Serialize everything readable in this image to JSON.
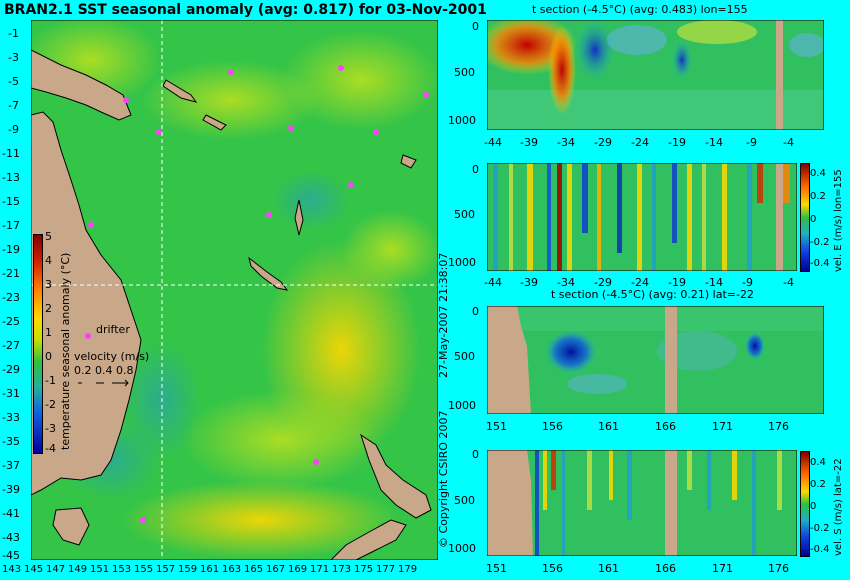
{
  "map": {
    "title": "BRAN2.1 SST seasonal anomaly (avg: 0.817) for 03-Nov-2001",
    "lat_ticks": [
      "-1",
      "-3",
      "-5",
      "-7",
      "-9",
      "-11",
      "-13",
      "-15",
      "-17",
      "-19",
      "-21",
      "-23",
      "-25",
      "-27",
      "-29",
      "-31",
      "-33",
      "-35",
      "-37",
      "-39",
      "-41",
      "-43",
      "-45"
    ],
    "lon_ticks": [
      "143",
      "145",
      "147",
      "149",
      "151",
      "153",
      "155",
      "157",
      "159",
      "161",
      "163",
      "165",
      "167",
      "169",
      "171",
      "173",
      "175",
      "177",
      "179"
    ],
    "colorbar": {
      "label": "temperature seasonal anomaly (°C)",
      "ticks": [
        "5",
        "4",
        "3",
        "2",
        "1",
        "0",
        "-1",
        "-2",
        "-3",
        "-4"
      ]
    },
    "drifter_label": "drifter",
    "velocity_label": "velocity (m/s)",
    "velocity_values": "0.2 0.4 0.8",
    "crosshair": {
      "lon": 155,
      "lat": -22
    }
  },
  "panels": {
    "p1": {
      "title": "t section (-4.5°C) (avg: 0.483) lon=155",
      "x_ticks": [
        "-44",
        "-39",
        "-34",
        "-29",
        "-24",
        "-19",
        "-14",
        "-9",
        "-4"
      ],
      "y_ticks": [
        "0",
        "500",
        "1000"
      ]
    },
    "p2": {
      "x_ticks": [
        "-44",
        "-39",
        "-34",
        "-29",
        "-24",
        "-19",
        "-14",
        "-9",
        "-4"
      ],
      "y_ticks": [
        "0",
        "500",
        "1000"
      ],
      "cb_label": "vel. E (m/s) lon=155",
      "cb_ticks": [
        "0.4",
        "0.2",
        "0",
        "-0.2",
        "-0.4"
      ]
    },
    "p3": {
      "title": "t section (-4.5°C) (avg: 0.21) lat=-22",
      "x_ticks": [
        "151",
        "156",
        "161",
        "166",
        "171",
        "176"
      ],
      "y_ticks": [
        "0",
        "500",
        "1000"
      ]
    },
    "p4": {
      "x_ticks": [
        "151",
        "156",
        "161",
        "166",
        "171",
        "176"
      ],
      "y_ticks": [
        "0",
        "500",
        "1000"
      ],
      "cb_label": "vel. S (m/s) lat=-22",
      "cb_ticks": [
        "0.4",
        "0.2",
        "0",
        "-0.2",
        "-0.4"
      ]
    }
  },
  "timestamp": "27-May-2007 21:38:07",
  "copyright": "© Copyright CSIRO 2007",
  "colors": {
    "background": "#00ffff",
    "land": "#c8a888",
    "sea_base": "#2ec24a"
  }
}
